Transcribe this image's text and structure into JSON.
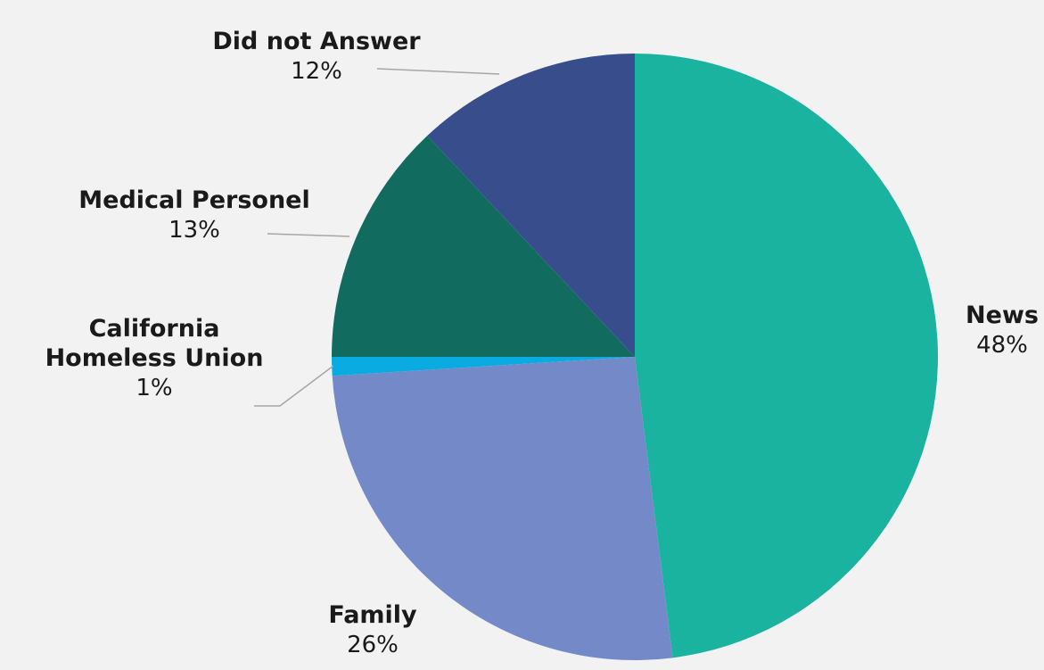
{
  "chart_data": {
    "type": "pie",
    "title": "",
    "slices": [
      {
        "label": "News",
        "label_lines": [
          "News"
        ],
        "value": 48,
        "display": "48%",
        "color": "#1ab3a0"
      },
      {
        "label": "Family",
        "label_lines": [
          "Family"
        ],
        "value": 26,
        "display": "26%",
        "color": "#7489c8"
      },
      {
        "label": "California Homeless Union",
        "label_lines": [
          "California",
          "Homeless Union"
        ],
        "value": 1,
        "display": "1%",
        "color": "#0aabe0"
      },
      {
        "label": "Medical Personel",
        "label_lines": [
          "Medical Personel"
        ],
        "value": 13,
        "display": "13%",
        "color": "#116b5e"
      },
      {
        "label": "Did not Answer",
        "label_lines": [
          "Did not Answer"
        ],
        "value": 12,
        "display": "12%",
        "color": "#384e8c"
      }
    ],
    "legend": "none",
    "data_labels": "outside-with-leader-lines"
  }
}
